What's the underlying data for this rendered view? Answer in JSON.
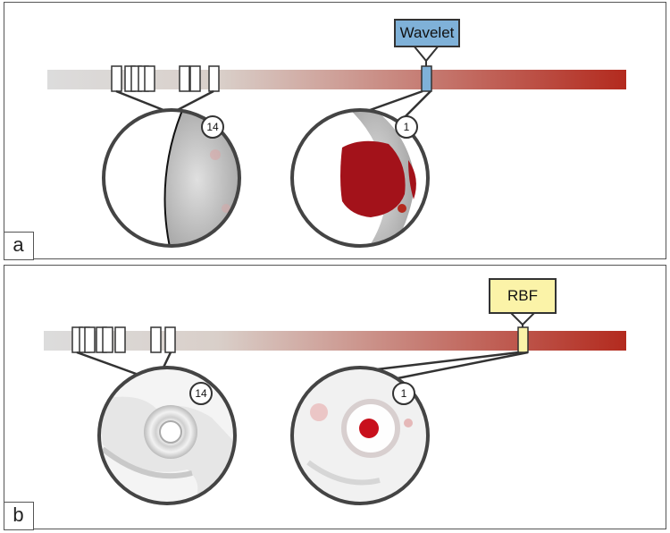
{
  "panels": [
    {
      "id": "a",
      "tag": "a",
      "method_label": "Wavelet",
      "method_color": "#7fb1d8",
      "badge_left": "14",
      "badge_right": "1"
    },
    {
      "id": "b",
      "tag": "b",
      "method_label": "RBF",
      "method_color": "#fbf3a8",
      "badge_left": "14",
      "badge_right": "1"
    }
  ],
  "colors": {
    "bar_start": "#dcdcdc",
    "bar_end": "#b32a1e",
    "stroke": "#333333",
    "blob": "#a3121a"
  },
  "icons": [
    "magnifier-circle-icon",
    "rank-badge-icon"
  ]
}
